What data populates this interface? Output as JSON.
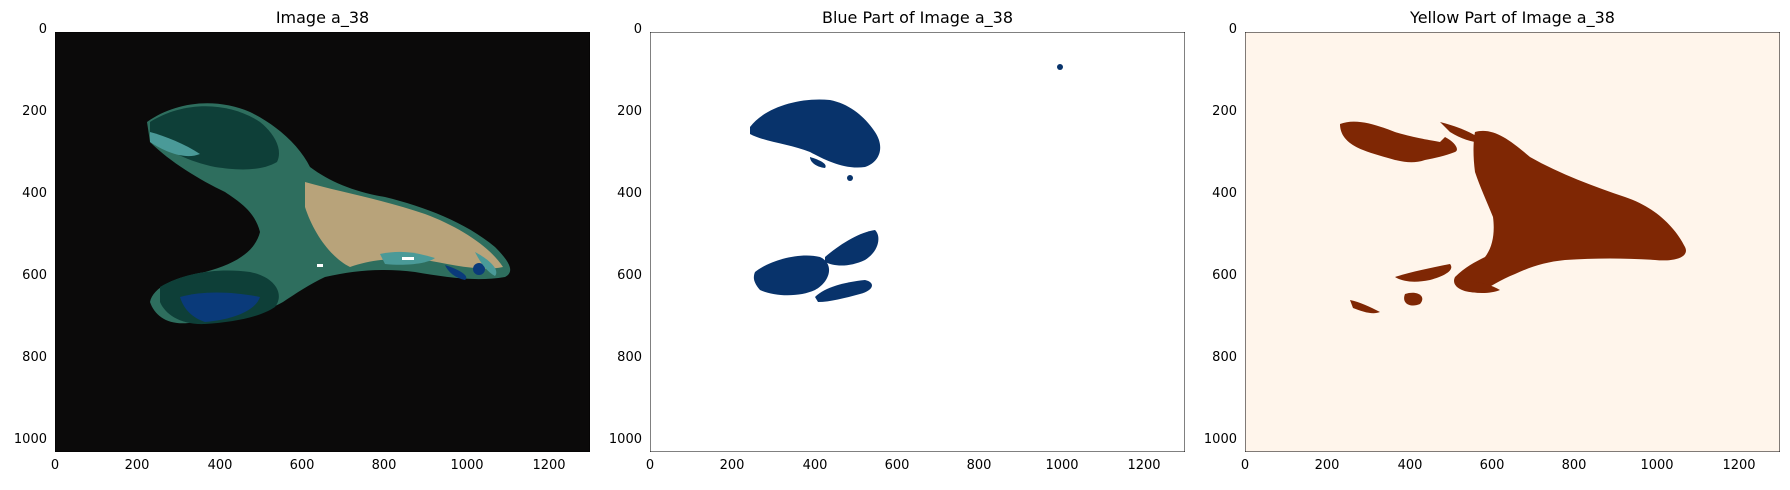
{
  "panels": [
    {
      "title": "Image a_38",
      "kind": "composite"
    },
    {
      "title": "Blue Part of Image a_38",
      "kind": "blue-mask"
    },
    {
      "title": "Yellow Part of Image a_38",
      "kind": "yellow-mask"
    }
  ],
  "axes": {
    "x_ticks": [
      "0",
      "200",
      "400",
      "600",
      "800",
      "1000",
      "1200"
    ],
    "y_ticks": [
      "0",
      "200",
      "400",
      "600",
      "800",
      "1000"
    ],
    "x_range": [
      0,
      1300
    ],
    "y_range": [
      1024,
      0
    ]
  },
  "colors": {
    "composite_bg": "#0b0a0a",
    "blue_mask_bg": "#ffffff",
    "blue_mask_fg": "#08336b",
    "yellow_mask_bg": "#fff5eb",
    "yellow_mask_fg": "#7f2704",
    "composite_dark_green": "#0e3f38",
    "composite_mid_green": "#2e6e5e",
    "composite_tan": "#b8a37a",
    "composite_teal": "#4a9a98",
    "composite_blue": "#0a3a7a"
  }
}
